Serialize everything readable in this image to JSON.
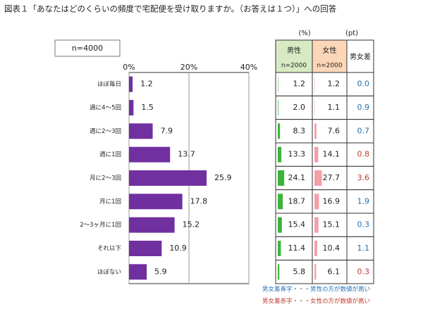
{
  "title": "図表１「あなたはどのくらいの頻度で宅配便を受け取りますか。（お答えは１つ）」への回答",
  "sample": "n=4000",
  "chart_data": {
    "type": "barh",
    "categories": [
      "ほぼ毎日",
      "週に4～5回",
      "週に2～3回",
      "週に1回",
      "月に2～3回",
      "月に1回",
      "2～3ヶ月に1回",
      "それ以下",
      "ほぼない"
    ],
    "values": [
      1.2,
      1.5,
      7.9,
      13.7,
      25.9,
      17.8,
      15.2,
      10.9,
      5.9
    ],
    "color": "#7030a0",
    "xlim": [
      0,
      40
    ],
    "xticks": [
      {
        "value": 0,
        "label": "0%"
      },
      {
        "value": 20,
        "label": "20%"
      },
      {
        "value": 40,
        "label": "40%"
      }
    ],
    "grid": true
  },
  "table": {
    "unit_pct": "(%)",
    "unit_pt": "(pt)",
    "columns": [
      {
        "name": "男性",
        "n": "n=2000",
        "color": "#d7eac4",
        "bar_color": "#3cb43c",
        "values": [
          1.2,
          2.0,
          8.3,
          13.3,
          24.1,
          18.7,
          15.4,
          11.4,
          5.8
        ],
        "value_labels": [
          "1.2",
          "2.0",
          "8.3",
          "13.3",
          "24.1",
          "18.7",
          "15.4",
          "11.4",
          "5.8"
        ]
      },
      {
        "name": "女性",
        "n": "n=2000",
        "color": "#fbd6b8",
        "bar_color": "#f4a0a8",
        "values": [
          1.2,
          1.1,
          7.6,
          14.1,
          27.7,
          16.9,
          15.1,
          10.4,
          6.1
        ],
        "value_labels": [
          "1.2",
          "1.1",
          "7.6",
          "14.1",
          "27.7",
          "16.9",
          "15.1",
          "10.4",
          "6.1"
        ]
      }
    ],
    "diff": {
      "name": "男女差",
      "values": [
        0.0,
        0.9,
        0.7,
        0.8,
        3.6,
        1.9,
        0.3,
        1.1,
        0.3
      ],
      "value_labels": [
        "0.0",
        "0.9",
        "0.7",
        "0.8",
        "3.6",
        "1.9",
        "0.3",
        "1.1",
        "0.3"
      ],
      "colors": [
        "#1f6fb5",
        "#1f6fb5",
        "#1f6fb5",
        "#c0392b",
        "#c0392b",
        "#1f6fb5",
        "#1f6fb5",
        "#1f6fb5",
        "#c0392b"
      ]
    }
  },
  "notes": [
    {
      "text": "男女差青字・・・男性の方が数値が高い",
      "color": "#1f6fb5"
    },
    {
      "text": "男女差赤字・・・女性の方が数値が高い",
      "color": "#c0392b"
    }
  ]
}
